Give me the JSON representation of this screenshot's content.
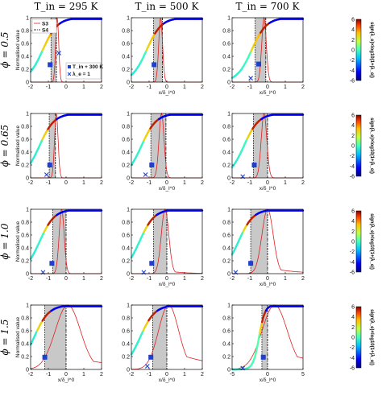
{
  "chart_data": {
    "type": "line",
    "column_titles": [
      "T_in = 295 K",
      "T_in = 500 K",
      "T_in = 700 K"
    ],
    "row_titles": [
      "ϕ = 0.5",
      "ϕ = 0.65",
      "ϕ = 1.0",
      "ϕ = 1.5"
    ],
    "ylabel": "Normalised value",
    "xlabel": "x/δ_l^0",
    "ylim": [
      0,
      1
    ],
    "yticks": [
      0,
      0.2,
      0.4,
      0.6,
      0.8,
      1
    ],
    "xlim_default": [
      -2,
      2
    ],
    "xticks_default": [
      -2,
      -1,
      0,
      1,
      2
    ],
    "xlim_wide": [
      -5,
      5
    ],
    "xticks_wide": [
      -5,
      0,
      5
    ],
    "legend": {
      "s3": "S3",
      "s4": "S4",
      "square": "T_in + 300 K",
      "cross": "λ_e = 1"
    },
    "colorbar": {
      "label": "sign(λ_e)×log10(1+|λ_e|)",
      "ticks": [
        6,
        4,
        2,
        0,
        -2,
        -4,
        -6
      ],
      "range": [
        -6,
        6
      ],
      "colors": [
        "#00007f",
        "#0000ff",
        "#00bfff",
        "#40ffbf",
        "#bfff40",
        "#ffbf00",
        "#ff4000",
        "#7f0000"
      ]
    },
    "panels": [
      {
        "row": 0,
        "col": 0,
        "shade": [
          -0.85,
          -0.55
        ],
        "s4": -0.55,
        "wide": false,
        "square": [
          -0.9,
          0.27
        ],
        "cross": [
          -0.4,
          0.45
        ],
        "pk": -0.5,
        "pw": 0.12,
        "tail": 0.0
      },
      {
        "row": 0,
        "col": 1,
        "shade": [
          -0.75,
          -0.25
        ],
        "s4": -0.25,
        "wide": false,
        "square": [
          -0.72,
          0.27
        ],
        "cross": null,
        "pk": -0.35,
        "pw": 0.15,
        "tail": 0.0
      },
      {
        "row": 0,
        "col": 2,
        "shade": [
          -0.7,
          -0.1
        ],
        "s4": -0.1,
        "wide": false,
        "square": [
          -0.5,
          0.28
        ],
        "cross": [
          -0.95,
          0.06
        ],
        "pk": -0.2,
        "pw": 0.18,
        "tail": 0.0
      },
      {
        "row": 1,
        "col": 0,
        "shade": [
          -0.95,
          -0.6
        ],
        "s4": -0.6,
        "wide": false,
        "square": [
          -0.92,
          0.2
        ],
        "cross": [
          -1.1,
          0.05
        ],
        "pk": -0.55,
        "pw": 0.14,
        "tail": 0.0
      },
      {
        "row": 1,
        "col": 1,
        "shade": [
          -0.9,
          -0.05
        ],
        "s4": -0.05,
        "wide": false,
        "square": [
          -0.85,
          0.2
        ],
        "cross": [
          -1.2,
          0.05
        ],
        "pk": -0.3,
        "pw": 0.2,
        "tail": 0.0
      },
      {
        "row": 1,
        "col": 2,
        "shade": [
          -0.8,
          0.0
        ],
        "s4": 0.0,
        "wide": false,
        "square": [
          -0.75,
          0.2
        ],
        "cross": [
          -1.4,
          0.02
        ],
        "pk": -0.2,
        "pw": 0.22,
        "tail": 0.0
      },
      {
        "row": 2,
        "col": 0,
        "shade": [
          -0.75,
          0.0
        ],
        "s4": 0.0,
        "wide": false,
        "square": [
          -0.8,
          0.16
        ],
        "cross": [
          -1.3,
          0.02
        ],
        "pk": -0.25,
        "pw": 0.2,
        "tail": 0.0
      },
      {
        "row": 2,
        "col": 1,
        "shade": [
          -0.75,
          0.0
        ],
        "s4": 0.0,
        "wide": false,
        "square": [
          -0.85,
          0.16
        ],
        "cross": [
          -1.3,
          0.02
        ],
        "pk": -0.1,
        "pw": 0.3,
        "tail": 0.05
      },
      {
        "row": 2,
        "col": 2,
        "shade": [
          -0.95,
          0.0
        ],
        "s4": 0.0,
        "wide": false,
        "square": [
          -0.95,
          0.16
        ],
        "cross": [
          -1.8,
          0.02
        ],
        "pk": 0.0,
        "pw": 0.45,
        "tail": 0.1
      },
      {
        "row": 3,
        "col": 0,
        "shade": [
          -1.2,
          0.0
        ],
        "s4": 0.0,
        "wide": false,
        "square": [
          -1.2,
          0.19
        ],
        "cross": null,
        "pk": 0.1,
        "pw": 1.0,
        "tail": 0.2
      },
      {
        "row": 3,
        "col": 1,
        "shade": [
          -0.8,
          0.0
        ],
        "s4": 0.0,
        "wide": false,
        "square": [
          -0.9,
          0.19
        ],
        "cross": [
          -1.1,
          0.05
        ],
        "pk": 0.1,
        "pw": 0.8,
        "tail": 0.3
      },
      {
        "row": 3,
        "col": 2,
        "shade": [
          -0.8,
          0.0
        ],
        "s4": 0.0,
        "wide": true,
        "square": [
          -0.6,
          0.19
        ],
        "cross": [
          -3.5,
          0.02
        ],
        "pk": 1.0,
        "pw": 2.5,
        "tail": 0.3
      }
    ]
  }
}
